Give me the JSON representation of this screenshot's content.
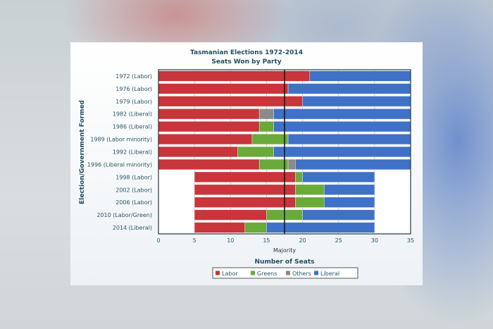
{
  "chart_data": {
    "type": "bar",
    "orientation": "horizontal",
    "stacked": true,
    "title": "Tasmanian Elections 1972-2014",
    "subtitle": "Seats Won by Party",
    "xlabel": "Number of Seats",
    "ylabel": "Election/Government Formed",
    "xlim": [
      0,
      35
    ],
    "xticks": [
      "0",
      "5",
      "10",
      "15",
      "20",
      "25",
      "30",
      "35"
    ],
    "annotation": "Majority",
    "majority_line": 17.5,
    "grid": true,
    "legend_position": "bottom",
    "categories": [
      "1972 (Labor)",
      "1976 (Labor)",
      "1979 (Labor)",
      "1982 (Liberal)",
      "1986 (Liberal)",
      "1989 (Labor minority)",
      "1992 (Liberal)",
      "1996 (Liberal minority)",
      "1998 (Labor)",
      "2002 (Labor)",
      "2006 (Labor)",
      "2010 (Labor/Green)",
      "2014 (Liberal)"
    ],
    "bar_start": [
      0,
      0,
      0,
      0,
      0,
      0,
      0,
      0,
      5,
      5,
      5,
      5,
      5
    ],
    "series": [
      {
        "name": "Labor",
        "color": "#c8353a",
        "values": [
          21,
          18,
          20,
          14,
          14,
          13,
          11,
          14,
          14,
          14,
          14,
          10,
          7
        ]
      },
      {
        "name": "Greens",
        "color": "#6aaa3a",
        "values": [
          0,
          0,
          0,
          0,
          2,
          5,
          5,
          4,
          1,
          4,
          4,
          5,
          3
        ]
      },
      {
        "name": "Others",
        "color": "#8c8a86",
        "values": [
          0,
          0,
          0,
          2,
          0,
          0,
          0,
          1,
          0,
          0,
          0,
          0,
          0
        ]
      },
      {
        "name": "Liberal",
        "color": "#3f71c6",
        "values": [
          14,
          17,
          15,
          19,
          19,
          17,
          19,
          16,
          10,
          7,
          7,
          10,
          15
        ]
      }
    ]
  }
}
